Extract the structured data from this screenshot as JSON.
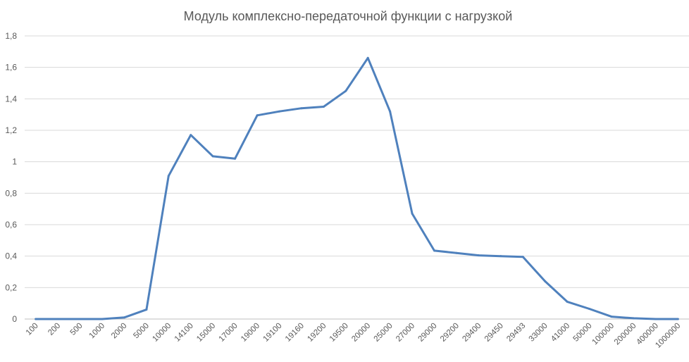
{
  "chart_data": {
    "type": "line",
    "title": "Модуль комплексно-передаточной функции с нагрузкой",
    "xlabel": "",
    "ylabel": "",
    "ylim": [
      0,
      1.8
    ],
    "yticks": [
      "0",
      "0,2",
      "0,4",
      "0,6",
      "0,8",
      "1",
      "1,2",
      "1,4",
      "1,6",
      "1,8"
    ],
    "grid": true,
    "legend": "none",
    "line_color": "#4f81bd",
    "categories": [
      "100",
      "200",
      "500",
      "1000",
      "2000",
      "5000",
      "10000",
      "14100",
      "15000",
      "17000",
      "19000",
      "19100",
      "19160",
      "19200",
      "19500",
      "20000",
      "25000",
      "27000",
      "29000",
      "29200",
      "29400",
      "29450",
      "29493",
      "33000",
      "41000",
      "50000",
      "100000",
      "200000",
      "400000",
      "1000000"
    ],
    "series": [
      {
        "values": [
          0,
          0,
          0,
          0,
          0.01,
          0.06,
          0.91,
          1.17,
          1.035,
          1.02,
          1.295,
          1.32,
          1.34,
          1.35,
          1.45,
          1.66,
          1.32,
          0.67,
          0.435,
          0.42,
          0.405,
          0.4,
          0.395,
          0.24,
          0.11,
          0.065,
          0.015,
          0.005,
          0,
          0
        ]
      }
    ]
  }
}
